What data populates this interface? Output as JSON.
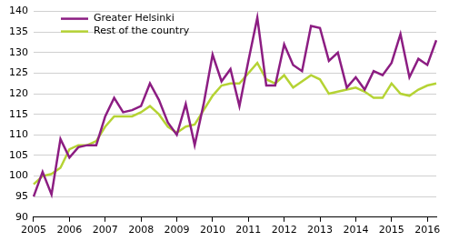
{
  "chart_data": {
    "type": "line",
    "categories": [
      "2005",
      null,
      null,
      null,
      "2006",
      null,
      null,
      null,
      "2007",
      null,
      null,
      null,
      "2008",
      null,
      null,
      null,
      "2009",
      null,
      null,
      null,
      "2010",
      null,
      null,
      null,
      "2011",
      null,
      null,
      null,
      "2012",
      null,
      null,
      null,
      "2013",
      null,
      null,
      null,
      "2014",
      null,
      null,
      null,
      "2015",
      null,
      null,
      null,
      "2016",
      null
    ],
    "series": [
      {
        "name": "Greater Helsinki",
        "color": "#8c1d82",
        "values": [
          95,
          101,
          95.5,
          109,
          104.5,
          107,
          107.5,
          107.5,
          114.5,
          119,
          115.5,
          116,
          117,
          122.5,
          118.5,
          113,
          110,
          117.5,
          107.5,
          117.5,
          129.5,
          123,
          126,
          117,
          128,
          138.5,
          122,
          122,
          132,
          127,
          125.5,
          136.5,
          136,
          128,
          130,
          121.5,
          124,
          121,
          125.5,
          124.5,
          127.5,
          134.5,
          124,
          128.5,
          127,
          133
        ]
      },
      {
        "name": "Rest of the country",
        "color": "#b5d334",
        "values": [
          98,
          100,
          100.5,
          102,
          106.5,
          107.5,
          107.5,
          108.5,
          112,
          114.5,
          114.5,
          114.5,
          115.5,
          117,
          115,
          112,
          110.5,
          112,
          112.5,
          116,
          119.5,
          122,
          122.5,
          122.5,
          125,
          127.5,
          123.5,
          122.5,
          124.5,
          121.5,
          123,
          124.5,
          123.5,
          120,
          120.5,
          121,
          121.5,
          120.5,
          119,
          119,
          122.5,
          120,
          119.5,
          121,
          122,
          122.5
        ]
      }
    ],
    "ylim": [
      90,
      140
    ],
    "yticks": [
      90,
      95,
      100,
      105,
      110,
      115,
      120,
      125,
      130,
      135,
      140
    ],
    "grid": true,
    "legend": "upper left"
  }
}
